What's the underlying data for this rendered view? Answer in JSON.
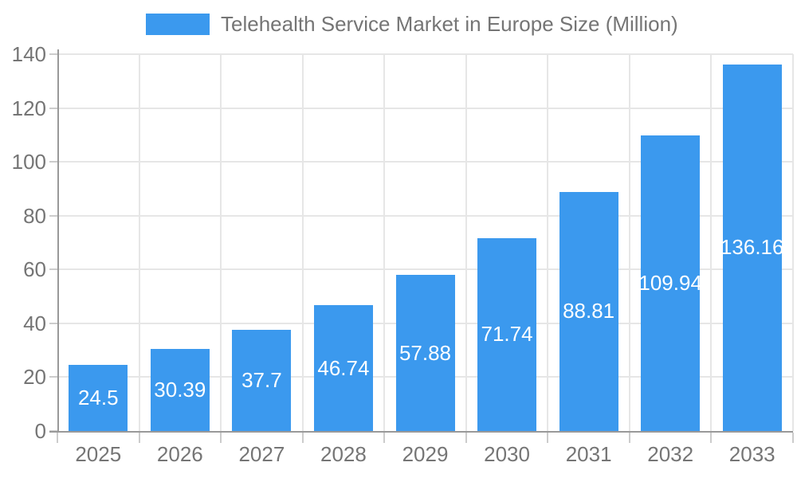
{
  "chart_data": {
    "type": "bar",
    "title": "Telehealth Service Market in Europe Size (Million)",
    "categories": [
      "2025",
      "2026",
      "2027",
      "2028",
      "2029",
      "2030",
      "2031",
      "2032",
      "2033"
    ],
    "values": [
      24.5,
      30.39,
      37.7,
      46.74,
      57.88,
      71.74,
      88.81,
      109.94,
      136.16
    ],
    "value_labels": [
      "24.5",
      "30.39",
      "37.7",
      "46.74",
      "57.88",
      "71.74",
      "88.81",
      "109.94",
      "136.16"
    ],
    "xlabel": "",
    "ylabel": "",
    "ylim": [
      0,
      140
    ],
    "yticks": [
      0,
      20,
      40,
      60,
      80,
      100,
      120,
      140
    ],
    "grid": true,
    "legend_position": "top-center",
    "colors": {
      "bar": "#3B99EE",
      "axis_line": "#999999",
      "grid_line": "#E6E6E6",
      "tick": "#CCCCCC",
      "text": "#757575",
      "value_label": "#FFFFFF",
      "background": "#FFFFFF"
    }
  }
}
